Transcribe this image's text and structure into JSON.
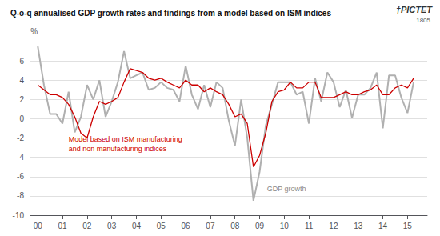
{
  "chart_data": {
    "type": "line",
    "title": "Q-o-q annualised GDP growth rates and findings from a model based on ISM indices",
    "ylabel": "%",
    "x": [
      0,
      0.25,
      0.5,
      0.75,
      1,
      1.25,
      1.5,
      1.75,
      2,
      2.25,
      2.5,
      2.75,
      3,
      3.25,
      3.5,
      3.75,
      4,
      4.25,
      4.5,
      4.75,
      5,
      5.25,
      5.5,
      5.75,
      6,
      6.25,
      6.5,
      6.75,
      7,
      7.25,
      7.5,
      7.75,
      8,
      8.25,
      8.5,
      8.75,
      9,
      9.25,
      9.5,
      9.75,
      10,
      10.25,
      10.5,
      10.75,
      11,
      11.25,
      11.5,
      11.75,
      12,
      12.25,
      12.5,
      12.75,
      13,
      13.25,
      13.5,
      13.75,
      14,
      14.25,
      14.5,
      14.75,
      15,
      15.25
    ],
    "xlim": [
      -0.3,
      15.8
    ],
    "xticks": [
      {
        "value": 0,
        "label": "00"
      },
      {
        "value": 1,
        "label": "01"
      },
      {
        "value": 2,
        "label": "02"
      },
      {
        "value": 3,
        "label": "03"
      },
      {
        "value": 4,
        "label": "04"
      },
      {
        "value": 5,
        "label": "05"
      },
      {
        "value": 6,
        "label": "06"
      },
      {
        "value": 7,
        "label": "07"
      },
      {
        "value": 8,
        "label": "08"
      },
      {
        "value": 9,
        "label": "09"
      },
      {
        "value": 10,
        "label": "10"
      },
      {
        "value": 11,
        "label": "11"
      },
      {
        "value": 12,
        "label": "12"
      },
      {
        "value": 13,
        "label": "13"
      },
      {
        "value": 14,
        "label": "14"
      },
      {
        "value": 15,
        "label": "15"
      }
    ],
    "ylim": [
      -10,
      8
    ],
    "yticks": [
      -10,
      -8,
      -6,
      -4,
      -2,
      0,
      2,
      4,
      6
    ],
    "grid": true,
    "series": [
      {
        "color": "#b0b0b0",
        "values": [
          7.5,
          3.5,
          0.5,
          0.5,
          -0.5,
          2.8,
          -1.4,
          0.2,
          3.5,
          2.0,
          4.0,
          0.2,
          1.8,
          3.8,
          7.0,
          4.2,
          4.5,
          4.8,
          3.0,
          3.2,
          3.8,
          3.2,
          3.0,
          1.8,
          5.5,
          2.5,
          1.0,
          3.5,
          1.2,
          3.8,
          3.2,
          -0.2,
          -2.8,
          2.0,
          -2.0,
          -8.5,
          -5.5,
          -0.7,
          1.5,
          3.8,
          3.8,
          3.8,
          2.5,
          2.8,
          -0.5,
          4.2,
          1.8,
          4.8,
          3.8,
          1.2,
          3.0,
          0.1,
          2.5,
          2.5,
          3.2,
          4.8,
          -1.0,
          4.5,
          4.5,
          2.2,
          0.6,
          3.8
        ]
      },
      {
        "color": "#cc0000",
        "values": [
          3.5,
          3.0,
          2.5,
          2.5,
          2.2,
          1.5,
          0.2,
          -1.5,
          -2.0,
          0.2,
          1.8,
          1.5,
          1.8,
          2.2,
          3.8,
          5.2,
          5.0,
          4.8,
          4.2,
          4.0,
          4.2,
          3.8,
          3.5,
          3.2,
          4.0,
          3.5,
          3.5,
          2.8,
          3.2,
          2.8,
          2.5,
          1.5,
          0.2,
          0.5,
          -0.5,
          -5.0,
          -3.8,
          -1.5,
          1.8,
          2.8,
          3.0,
          3.8,
          3.2,
          3.2,
          3.8,
          3.8,
          2.2,
          2.2,
          2.2,
          2.5,
          2.8,
          2.5,
          2.5,
          2.8,
          3.0,
          3.5,
          2.5,
          2.5,
          3.2,
          3.5,
          3.2,
          4.2
        ]
      }
    ],
    "annotations": [
      {
        "text": "Model based on ISM manufacturing\nand non manufacturing indices",
        "x": 1.25,
        "y": -1.6,
        "color": "#cc0000"
      },
      {
        "text": "GDP growth",
        "x": 9.3,
        "y": -6.8,
        "color": "#888888"
      },
      {
        "text": "†PICTET",
        "color": "#333333"
      },
      {
        "text": "1805",
        "color": "#555555"
      }
    ]
  }
}
